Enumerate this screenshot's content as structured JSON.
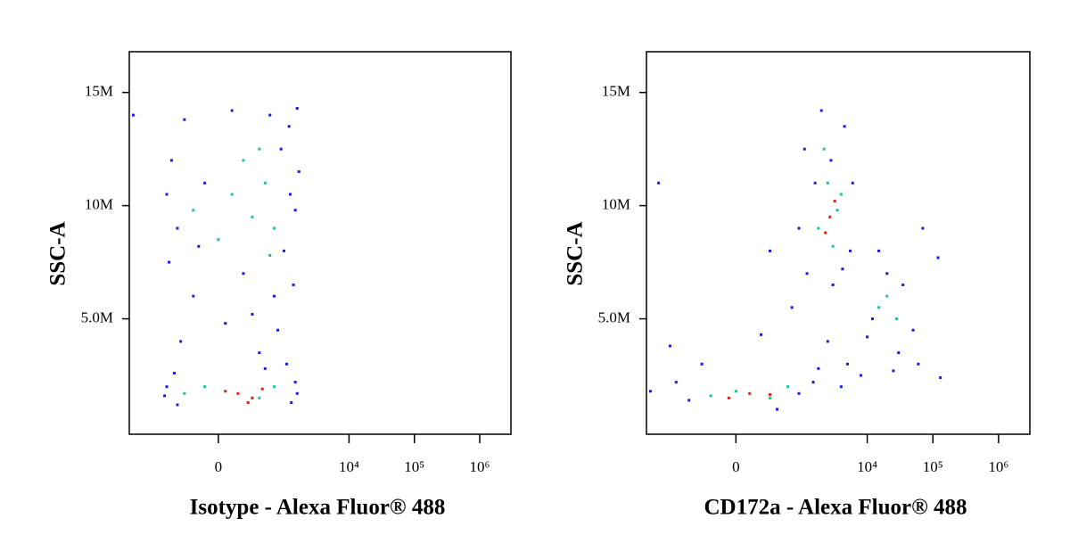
{
  "chart_data": [
    {
      "type": "scatter",
      "xlabel": "Isotype - Alexa Fluor® 488",
      "ylabel": "SSC-A",
      "xscale": "biexponential",
      "xlim": [
        -2300,
        3000000
      ],
      "ylim": [
        -100000,
        16800000
      ],
      "xticks": [
        0,
        {
          "value": 10000,
          "label": "10⁴"
        },
        {
          "value": 100000,
          "label": "10⁵"
        },
        {
          "value": 1000000,
          "label": "10⁶"
        }
      ],
      "yticks": [
        {
          "value": 5000000,
          "label": "5.0M"
        },
        {
          "value": 10000000,
          "label": "10M"
        },
        {
          "value": 15000000,
          "label": "15M"
        }
      ],
      "series": [
        {
          "color": "#1a1ae6",
          "x": [
            -500,
            -300,
            100,
            600,
            1200,
            1600,
            -600,
            -400,
            -550,
            -200,
            300,
            800,
            1400,
            1500,
            1700,
            900,
            -100,
            200,
            1000,
            -350,
            400,
            1100,
            -600,
            1500,
            1300,
            -400,
            -2000,
            700,
            -150,
            1250,
            500,
            -450,
            50,
            1600,
            -650
          ],
          "y": [
            12000000,
            13800000,
            14200000,
            14000000,
            13500000,
            14300000,
            10500000,
            9000000,
            7500000,
            6000000,
            5200000,
            4500000,
            6500000,
            9800000,
            11500000,
            12500000,
            11000000,
            7000000,
            8000000,
            4000000,
            3500000,
            3000000,
            2000000,
            2200000,
            1300000,
            1200000,
            14000000,
            6000000,
            8200000,
            10500000,
            2800000,
            2600000,
            4800000,
            1700000,
            1600000
          ]
        },
        {
          "color": "#20c0a0",
          "x": [
            100,
            300,
            500,
            0,
            400,
            700,
            -200,
            200,
            600,
            -100,
            400,
            700,
            -300
          ],
          "y": [
            10500000,
            9500000,
            11000000,
            8500000,
            12500000,
            9000000,
            9800000,
            12000000,
            7800000,
            2000000,
            1500000,
            2000000,
            1700000
          ]
        },
        {
          "color": "#e02010",
          "x": [
            150,
            300,
            50,
            450,
            250
          ],
          "y": [
            1700000,
            1500000,
            1800000,
            1900000,
            1300000
          ]
        }
      ]
    },
    {
      "type": "scatter",
      "xlabel": "CD172a - Alexa Fluor® 488",
      "ylabel": "SSC-A",
      "xscale": "biexponential",
      "xlim": [
        -2300,
        3000000
      ],
      "ylim": [
        -100000,
        16800000
      ],
      "xticks": [
        0,
        {
          "value": 10000,
          "label": "10⁴"
        },
        {
          "value": 100000,
          "label": "10⁵"
        },
        {
          "value": 1000000,
          "label": "10⁶"
        }
      ],
      "yticks": [
        {
          "value": 5000000,
          "label": "5.0M"
        },
        {
          "value": 10000000,
          "label": "10M"
        },
        {
          "value": 15000000,
          "label": "15M"
        }
      ],
      "series": [
        {
          "color": "#1a1ae6",
          "x": [
            1100,
            4500,
            2000,
            6000,
            900,
            1200,
            5500,
            3000,
            -1500,
            300,
            700,
            2500,
            5000,
            8000,
            12000,
            20000,
            35000,
            50000,
            30000,
            15000,
            60000,
            -800,
            -500,
            400,
            900,
            1500,
            -300,
            -1000,
            200,
            1800,
            4000,
            10000,
            25000,
            70000,
            120000,
            130000,
            2800,
            1600,
            4200,
            -2000
          ],
          "y": [
            12500000,
            13500000,
            14200000,
            11000000,
            9000000,
            7000000,
            8000000,
            6500000,
            11000000,
            8000000,
            5500000,
            4000000,
            3000000,
            2500000,
            5000000,
            7000000,
            6500000,
            4500000,
            3500000,
            8000000,
            3000000,
            2200000,
            1400000,
            1000000,
            1700000,
            2200000,
            3000000,
            3800000,
            4300000,
            2800000,
            2000000,
            4200000,
            2700000,
            9000000,
            7700000,
            2400000,
            12000000,
            11000000,
            7200000,
            1800000
          ]
        },
        {
          "color": "#20c0a0",
          "x": [
            2500,
            3500,
            1800,
            3000,
            2200,
            4000,
            20000,
            28000,
            15000,
            0,
            300,
            -200,
            600
          ],
          "y": [
            11000000,
            9800000,
            9000000,
            8200000,
            12500000,
            10500000,
            6000000,
            5000000,
            5500000,
            1800000,
            1500000,
            1600000,
            2000000
          ]
        },
        {
          "color": "#e02010",
          "x": [
            2700,
            3200,
            2300,
            100,
            -50,
            300
          ],
          "y": [
            9500000,
            10200000,
            8800000,
            1700000,
            1500000,
            1650000
          ]
        }
      ]
    }
  ]
}
